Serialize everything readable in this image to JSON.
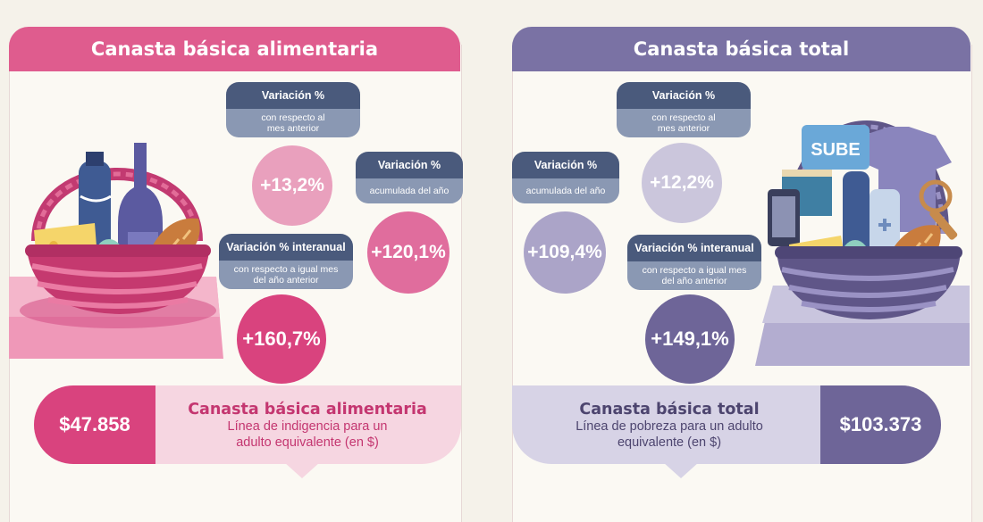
{
  "left": {
    "title": "Canasta básica alimentaria",
    "mensual": {
      "label": "Variación %",
      "sub": "con respecto al mes anterior",
      "value": "+13,2%"
    },
    "acumulada": {
      "label": "Variación %",
      "sub": "acumulada del año",
      "value": "+120,1%"
    },
    "interanual": {
      "label": "Variación % interanual",
      "sub": "con respecto a igual mes del año anterior",
      "value": "+160,7%"
    },
    "price": "$47.858",
    "bottom_title": "Canasta básica alimentaria",
    "bottom_sub": "Línea de indigencia para un adulto equivalente (en $)"
  },
  "right": {
    "title": "Canasta básica total",
    "mensual": {
      "label": "Variación %",
      "sub": "con respecto al mes anterior",
      "value": "+12,2%"
    },
    "acumulada": {
      "label": "Variación %",
      "sub": "acumulada del año",
      "value": "+109,4%"
    },
    "interanual": {
      "label": "Variación % interanual",
      "sub": "con respecto a igual mes del año anterior",
      "value": "+149,1%"
    },
    "price": "$103.373",
    "bottom_title": "Canasta básica total",
    "bottom_sub": "Línea de pobreza para un adulto equivalente (en $)",
    "card_text": "SUBE"
  },
  "colors": {
    "pink_dark": "#d9437e",
    "pink_mid": "#e57ba6",
    "pink_light": "#f2c6d6",
    "purple_dark": "#6e6598",
    "purple_mid": "#958bb8",
    "purple_light": "#cbc6dc",
    "navy": "#4a5a7c",
    "slate": "#8a98b3"
  }
}
